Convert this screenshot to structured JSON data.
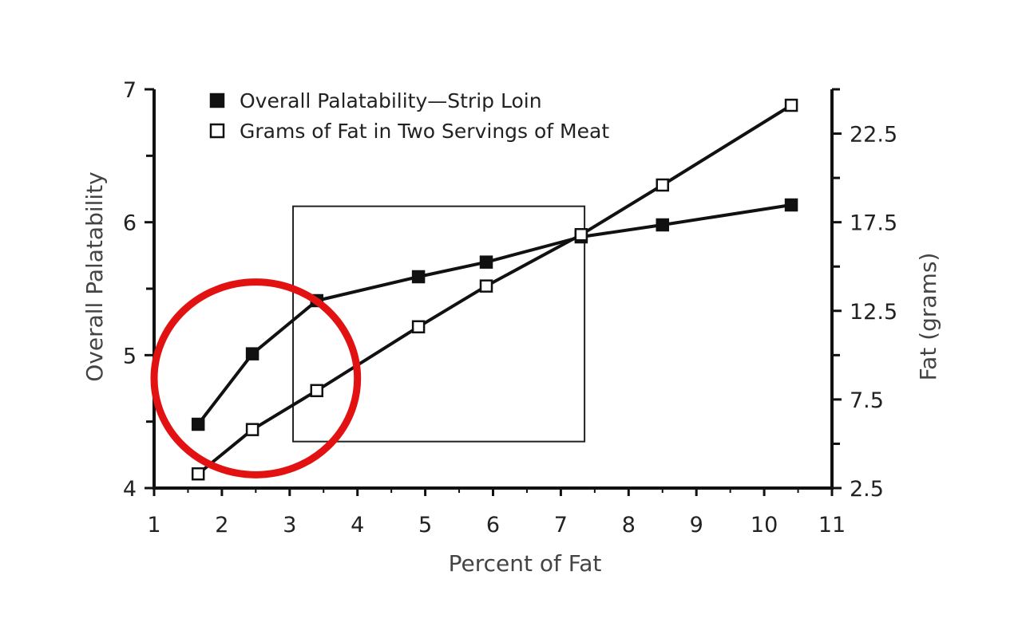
{
  "chart_data": {
    "type": "line",
    "title": "",
    "xlabel": "Percent of Fat",
    "ylabel": "Overall Palatability",
    "y2label": "Fat (grams)",
    "xlim": [
      1,
      11
    ],
    "ylim": [
      4,
      7
    ],
    "y2lim": [
      2.5,
      25
    ],
    "x_ticks": [
      "1",
      "2",
      "3",
      "4",
      "5",
      "6",
      "7",
      "8",
      "9",
      "10",
      "11"
    ],
    "y_ticks": [
      "4",
      "5",
      "6",
      "7"
    ],
    "y2_ticks": [
      "2.5",
      "7.5",
      "12.5",
      "17.5",
      "22.5"
    ],
    "legend_position": "top-left",
    "grid": false,
    "series": [
      {
        "name": "Overall Palatability—Strip Loin",
        "axis": "left",
        "marker": "filled-square",
        "color": "#111111",
        "x": [
          1.65,
          2.45,
          3.4,
          4.9,
          5.9,
          7.3,
          8.5,
          10.4
        ],
        "y": [
          4.48,
          5.01,
          5.41,
          5.59,
          5.7,
          5.89,
          5.98,
          6.13
        ]
      },
      {
        "name": "Grams of Fat in Two Servings of Meat",
        "axis": "right",
        "marker": "open-square",
        "color": "#111111",
        "x": [
          1.65,
          2.45,
          3.4,
          4.9,
          5.9,
          7.3,
          8.5,
          10.4
        ],
        "y": [
          3.3,
          5.8,
          8.0,
          11.6,
          13.9,
          16.8,
          19.6,
          24.1
        ]
      }
    ],
    "annotations": [
      {
        "type": "ellipse",
        "color": "#e31212",
        "x_range": [
          1.0,
          4.0
        ],
        "y_range": [
          4.1,
          5.55
        ]
      },
      {
        "type": "rectangle",
        "color": "#222222",
        "x_range": [
          3.05,
          7.35
        ],
        "y_range": [
          4.35,
          6.12
        ]
      }
    ]
  }
}
